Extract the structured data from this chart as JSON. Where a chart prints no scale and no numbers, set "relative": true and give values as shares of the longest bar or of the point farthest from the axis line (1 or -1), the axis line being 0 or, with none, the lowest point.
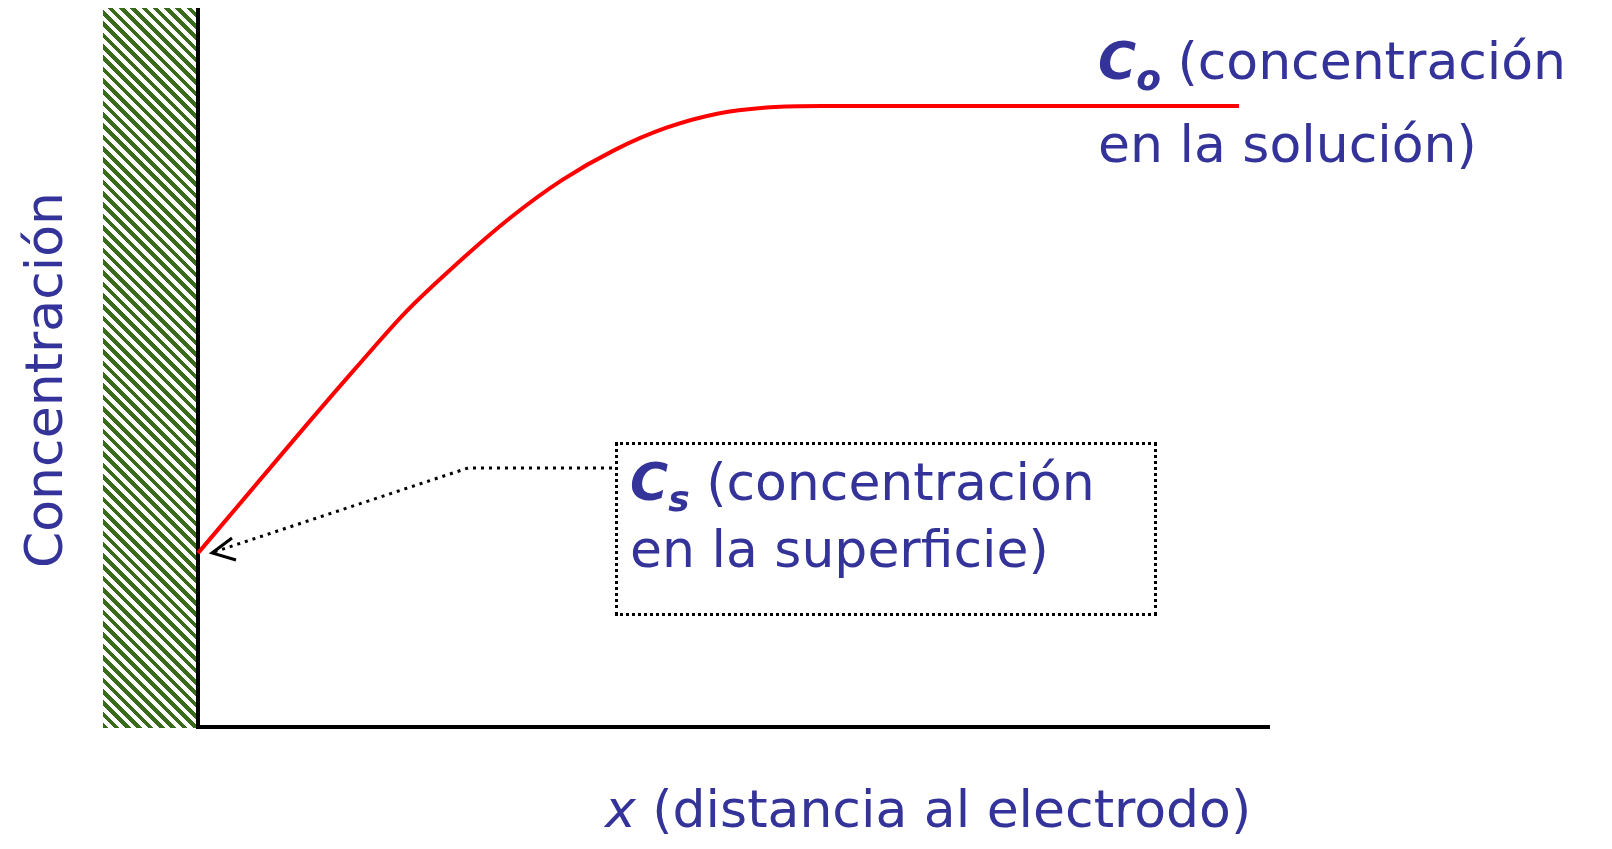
{
  "chart_data": {
    "type": "line",
    "relative": true,
    "marker": "none",
    "xlabel": "x (distancia al electrodo)",
    "ylabel": "Concentración",
    "categories": [
      null,
      null,
      null,
      null,
      null,
      null,
      null,
      null,
      null,
      null,
      null,
      null,
      null,
      null,
      null,
      null,
      null,
      null,
      null,
      null,
      null
    ],
    "series": [
      {
        "color": "#ff0000",
        "values": [
          0.28,
          0.379,
          0.478,
          0.575,
          0.669,
          0.748,
          0.82,
          0.881,
          0.929,
          0.965,
          0.988,
          0.998,
          1,
          1,
          1,
          1,
          1,
          1,
          1,
          1,
          1
        ]
      }
    ],
    "annotations": [
      "C$_{o}$ (concentración en la solución)",
      "C$_{s}$ (concentración en la superficie)"
    ]
  }
}
